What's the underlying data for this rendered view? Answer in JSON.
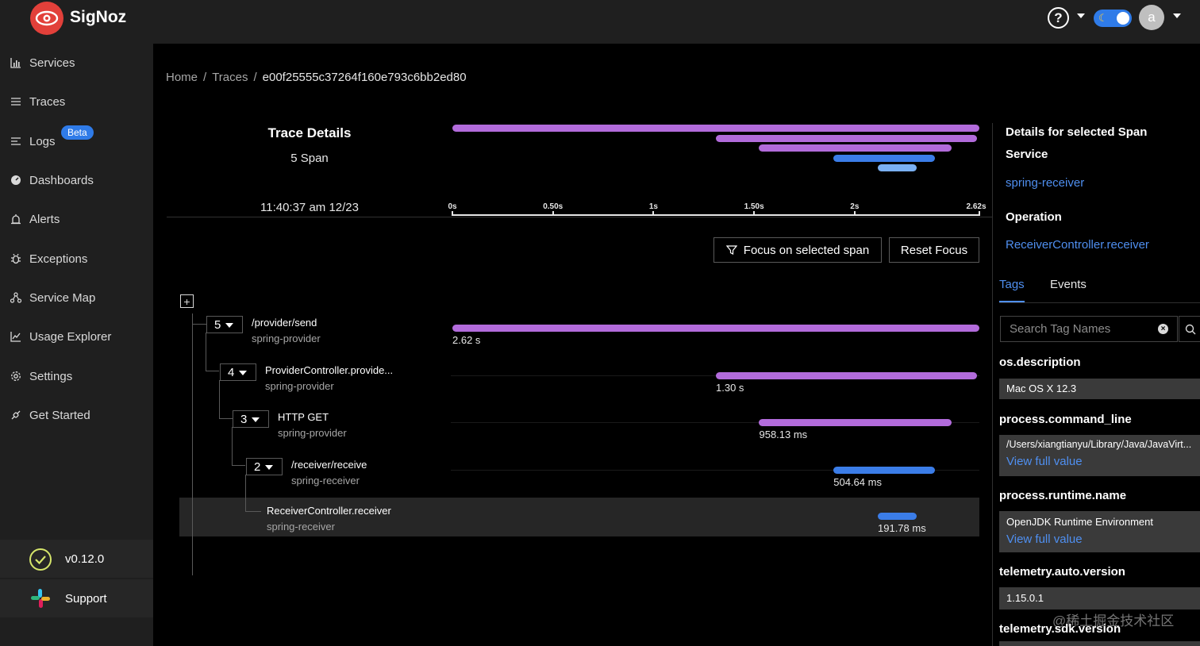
{
  "app": {
    "brand": "SigNoz"
  },
  "header": {
    "help_symbol": "?",
    "avatar_letter": "a"
  },
  "sidebar": {
    "items": [
      {
        "label": "Services",
        "icon": "bar-chart-icon"
      },
      {
        "label": "Traces",
        "icon": "menu-icon"
      },
      {
        "label": "Logs",
        "icon": "align-left-icon",
        "badge": "Beta"
      },
      {
        "label": "Dashboards",
        "icon": "dashboard-icon"
      },
      {
        "label": "Alerts",
        "icon": "alarm-icon"
      },
      {
        "label": "Exceptions",
        "icon": "bug-icon"
      },
      {
        "label": "Service Map",
        "icon": "deployment-icon"
      },
      {
        "label": "Usage Explorer",
        "icon": "line-chart-icon"
      },
      {
        "label": "Settings",
        "icon": "settings-icon"
      },
      {
        "label": "Get Started",
        "icon": "api-icon"
      }
    ],
    "version": "v0.12.0",
    "support": "Support"
  },
  "breadcrumb": {
    "home": "Home",
    "traces": "Traces",
    "trace_id": "e00f25555c37264f160e793c6bb2ed80"
  },
  "trace": {
    "title": "Trace Details",
    "span_count": "5 Span",
    "timestamp": "11:40:37 am 12/23",
    "axis_ticks": [
      "0s",
      "0.50s",
      "1s",
      "1.50s",
      "2s",
      "2.62s"
    ]
  },
  "buttons": {
    "focus": "Focus on selected span",
    "reset": "Reset Focus"
  },
  "colors": {
    "purple": "#b26bdb",
    "blue": "#3b7de8",
    "light_blue": "#7ab0f3"
  },
  "spans": [
    {
      "count": "5",
      "operation": "/provider/send",
      "service": "spring-provider",
      "duration": "2.62 s",
      "start_s": 0.0,
      "duration_s": 2.62,
      "color": "purple"
    },
    {
      "count": "4",
      "operation": "ProviderController.provide...",
      "service": "spring-provider",
      "duration": "1.30 s",
      "start_s": 1.31,
      "duration_s": 1.3,
      "color": "purple"
    },
    {
      "count": "3",
      "operation": "HTTP GET",
      "service": "spring-provider",
      "duration": "958.13 ms",
      "start_s": 1.525,
      "duration_s": 0.958,
      "color": "purple"
    },
    {
      "count": "2",
      "operation": "/receiver/receive",
      "service": "spring-receiver",
      "duration": "504.64 ms",
      "start_s": 1.895,
      "duration_s": 0.505,
      "color": "blue"
    },
    {
      "count": "",
      "operation": "ReceiverController.receiver",
      "service": "spring-receiver",
      "duration": "191.78 ms",
      "start_s": 2.115,
      "duration_s": 0.192,
      "color": "blue"
    }
  ],
  "details": {
    "title": "Details for selected Span",
    "service_label": "Service",
    "service_value": "spring-receiver",
    "operation_label": "Operation",
    "operation_value": "ReceiverController.receiver",
    "tabs": [
      "Tags",
      "Events"
    ],
    "search_placeholder": "Search Tag Names",
    "view_full": "View full value",
    "tags": [
      {
        "key": "os.description",
        "value": "Mac OS X 12.3"
      },
      {
        "key": "process.command_line",
        "value": "/Users/xiangtianyu/Library/Java/JavaVirt..."
      },
      {
        "key": "process.runtime.name",
        "value": "OpenJDK Runtime Environment"
      },
      {
        "key": "telemetry.auto.version",
        "value": "1.15.0.1"
      },
      {
        "key": "telemetry.sdk.version",
        "value": ""
      }
    ]
  },
  "watermark": "@稀土掘金技术社区"
}
